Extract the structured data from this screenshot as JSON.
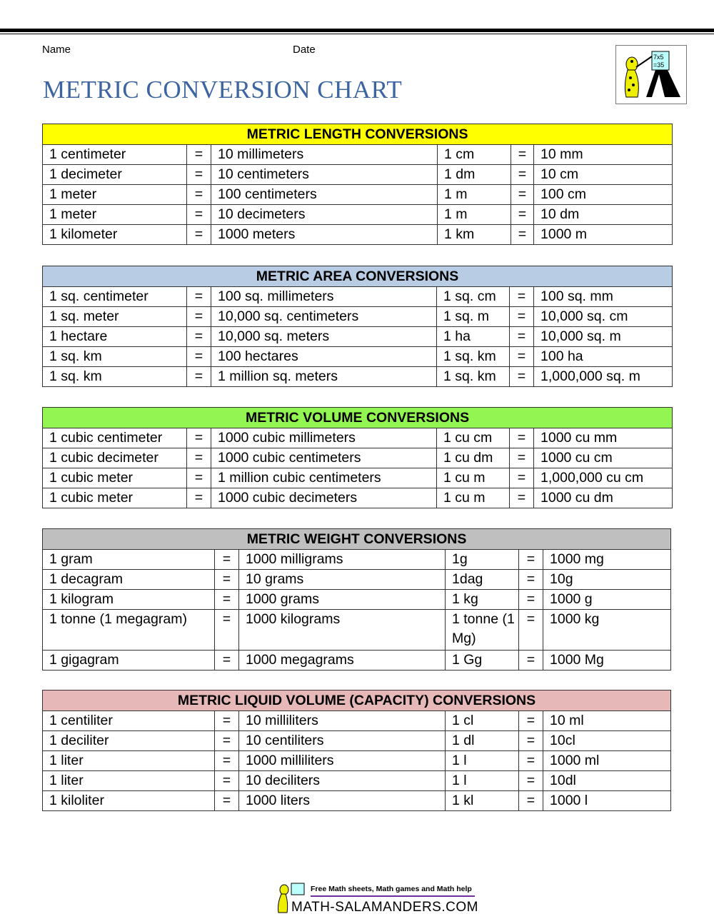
{
  "header": {
    "name_label": "Name",
    "date_label": "Date",
    "title": "METRIC CONVERSION CHART"
  },
  "colors": {
    "length": "#ffff00",
    "area": "#b8cce4",
    "volume": "#92f552",
    "weight": "#bfbfbf",
    "liquid": "#e6b8b7",
    "title": "#3b64a0"
  },
  "tables": [
    {
      "title": "METRIC LENGTH CONVERSIONS",
      "rows": [
        [
          "1 centimeter",
          "=",
          "10 millimeters",
          "1 cm",
          "=",
          "10 mm"
        ],
        [
          "1 decimeter",
          "=",
          "10 centimeters",
          "1 dm",
          "=",
          "10 cm"
        ],
        [
          "1 meter",
          "=",
          "100 centimeters",
          "1 m",
          "=",
          "100 cm"
        ],
        [
          "1 meter",
          "=",
          "10 decimeters",
          "1 m",
          "=",
          "10 dm"
        ],
        [
          "1 kilometer",
          "=",
          "1000 meters",
          "1 km",
          "=",
          "1000 m"
        ]
      ]
    },
    {
      "title": "METRIC AREA CONVERSIONS",
      "rows": [
        [
          "1 sq. centimeter",
          "=",
          "100 sq. millimeters",
          "1 sq. cm",
          "=",
          "100 sq. mm"
        ],
        [
          "1 sq. meter",
          "=",
          "10,000 sq. centimeters",
          "1 sq. m",
          "=",
          "10,000 sq. cm"
        ],
        [
          "1 hectare",
          "=",
          "10,000 sq. meters",
          "1 ha",
          "=",
          "10,000 sq. m"
        ],
        [
          "1 sq. km",
          "=",
          "100 hectares",
          "1 sq. km",
          "=",
          "100 ha"
        ],
        [
          "1 sq. km",
          "=",
          "1 million sq. meters",
          "1 sq. km",
          "=",
          "1,000,000 sq. m"
        ]
      ]
    },
    {
      "title": "METRIC VOLUME CONVERSIONS",
      "rows": [
        [
          "1 cubic centimeter",
          "=",
          "1000 cubic millimeters",
          "1 cu cm",
          "=",
          "1000 cu mm"
        ],
        [
          "1 cubic decimeter",
          "=",
          "1000 cubic centimeters",
          "1 cu dm",
          "=",
          "1000 cu cm"
        ],
        [
          "1 cubic meter",
          "=",
          "1 million cubic centimeters",
          "1 cu m",
          "=",
          "1,000,000 cu cm"
        ],
        [
          "1 cubic meter",
          "=",
          "1000 cubic decimeters",
          "1 cu m",
          "=",
          "1000 cu dm"
        ]
      ]
    },
    {
      "title": "METRIC WEIGHT CONVERSIONS",
      "rows": [
        [
          "1 gram",
          "=",
          "1000 milligrams",
          "1g",
          "=",
          "1000 mg"
        ],
        [
          "1 decagram",
          "=",
          "10 grams",
          "1dag",
          "=",
          "10g"
        ],
        [
          "1 kilogram",
          "=",
          "1000 grams",
          "1 kg",
          "=",
          "1000 g"
        ],
        [
          "1 tonne (1 megagram)",
          "=",
          "1000 kilograms",
          "1 tonne (1 Mg)",
          "=",
          "1000 kg"
        ],
        [
          "1 gigagram",
          "=",
          "1000 megagrams",
          "1 Gg",
          "=",
          "1000 Mg"
        ]
      ]
    },
    {
      "title": "METRIC LIQUID VOLUME (CAPACITY) CONVERSIONS",
      "rows": [
        [
          "1 centiliter",
          "=",
          "10 milliliters",
          "1 cl",
          "=",
          "10 ml"
        ],
        [
          "1 deciliter",
          "=",
          "10 centiliters",
          "1 dl",
          "=",
          "10cl"
        ],
        [
          "1 liter",
          "=",
          "1000 milliliters",
          "1 l",
          "=",
          "1000 ml"
        ],
        [
          "1 liter",
          "=",
          "10 deciliters",
          "1 l",
          "=",
          "10dl"
        ],
        [
          "1 kiloliter",
          "=",
          "1000 liters",
          "1 kl",
          "=",
          "1000 l"
        ]
      ]
    }
  ],
  "logo": {
    "board_text": "7x5 =35"
  },
  "footer": {
    "tagline": "Free Math sheets, Math games and Math help",
    "site": "MATH-SALAMANDERS.COM"
  }
}
